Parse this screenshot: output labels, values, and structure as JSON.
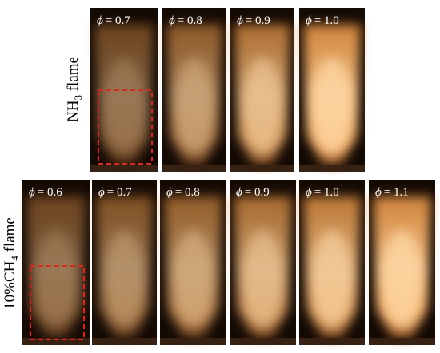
{
  "rows": [
    {
      "label": {
        "main": "NH",
        "sub": "3",
        "tail": " flame"
      },
      "panels": [
        {
          "symbol": "ϕ",
          "value": "= 0.7"
        },
        {
          "symbol": "ϕ",
          "value": "= 0.8"
        },
        {
          "symbol": "ϕ",
          "value": "= 0.9"
        },
        {
          "symbol": "ϕ",
          "value": "= 1.0"
        }
      ]
    },
    {
      "label": {
        "main": "10%CH",
        "sub": "4",
        "tail": " flame"
      },
      "panels": [
        {
          "symbol": "ϕ",
          "value": "= 0.6"
        },
        {
          "symbol": "ϕ",
          "value": "= 0.7"
        },
        {
          "symbol": "ϕ",
          "value": "= 0.8"
        },
        {
          "symbol": "ϕ",
          "value": "= 0.9"
        },
        {
          "symbol": "ϕ",
          "value": "= 1.0"
        },
        {
          "symbol": "ϕ",
          "value": "= 1.1"
        }
      ]
    }
  ]
}
